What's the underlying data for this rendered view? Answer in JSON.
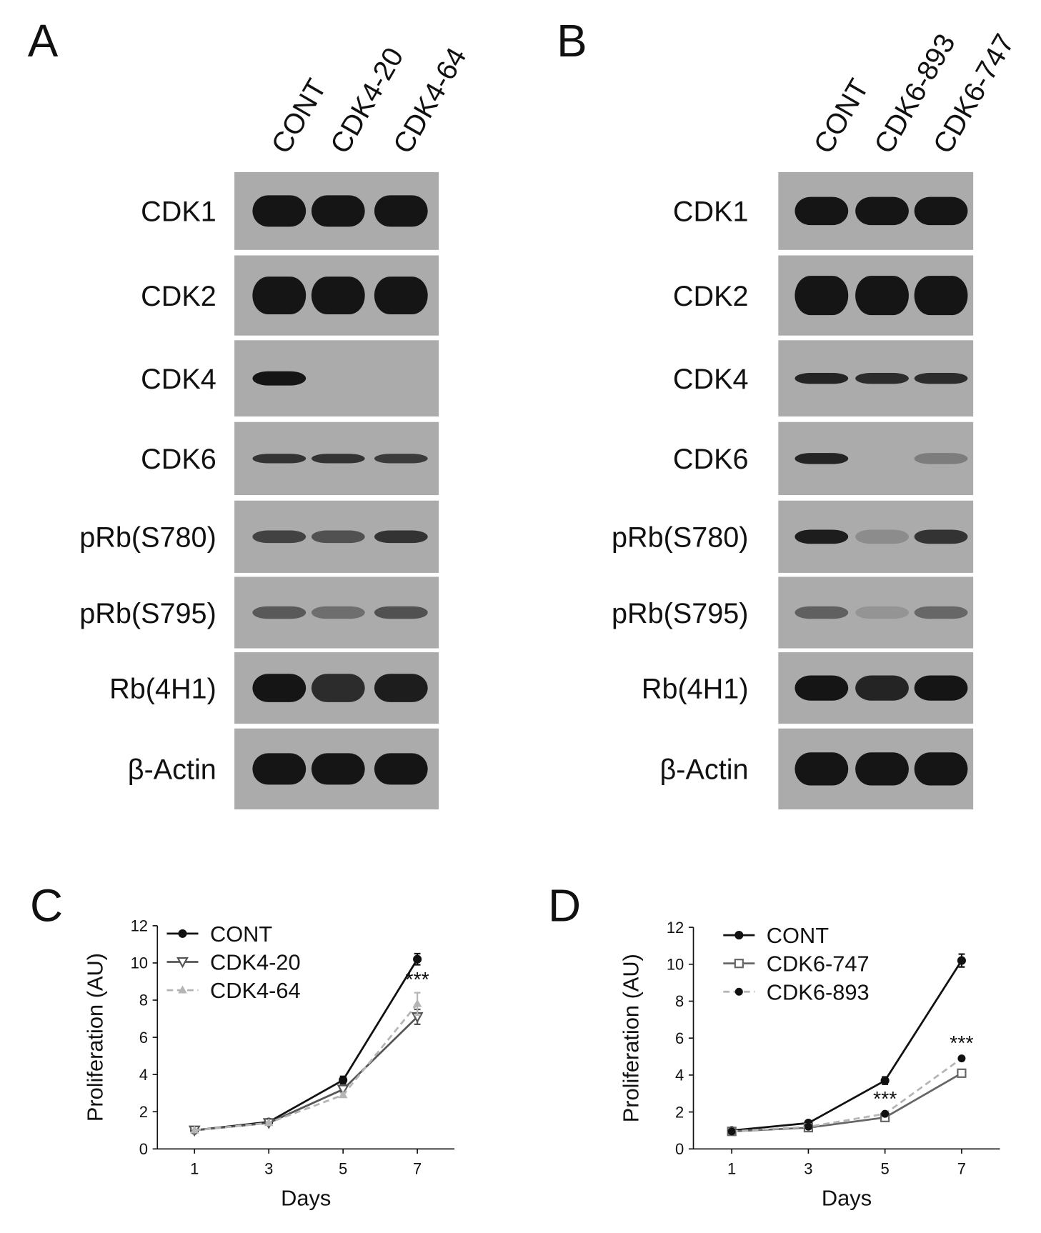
{
  "figure": {
    "blots": [
      {
        "panel_label": "A",
        "lanes": [
          "CONT",
          "CDK4-20",
          "CDK4-64"
        ],
        "rows": [
          "CDK1",
          "CDK2",
          "CDK4",
          "CDK6",
          "pRb(S780)",
          "pRb(S795)",
          "Rb(4H1)",
          "β-Actin"
        ]
      },
      {
        "panel_label": "B",
        "lanes": [
          "CONT",
          "CDK6-893",
          "CDK6-747"
        ],
        "rows": [
          "CDK1",
          "CDK2",
          "CDK4",
          "CDK6",
          "pRb(S780)",
          "pRb(S795)",
          "Rb(4H1)",
          "β-Actin"
        ]
      }
    ]
  },
  "chart_data": [
    {
      "type": "line",
      "panel_label": "C",
      "x_label": "Days",
      "y_label": "Proliferation (AU)",
      "x": [
        1,
        3,
        5,
        7
      ],
      "xlim": [
        0,
        8
      ],
      "xticks": [
        1,
        3,
        5,
        7
      ],
      "ylim": [
        0,
        12
      ],
      "yticks": [
        0,
        2,
        4,
        6,
        8,
        10,
        12
      ],
      "legend": "upper left",
      "series": [
        {
          "name": "CONT",
          "color": "#111111",
          "marker": "circle",
          "dash": false,
          "values": [
            1.0,
            1.45,
            3.7,
            10.2
          ],
          "errors": [
            0.05,
            0.05,
            0.2,
            0.3
          ]
        },
        {
          "name": "CDK4-20",
          "color": "#555555",
          "marker": "triangle-down",
          "dash": false,
          "values": [
            1.0,
            1.4,
            3.2,
            7.1
          ],
          "errors": [
            0.05,
            0.05,
            0.15,
            0.4
          ]
        },
        {
          "name": "CDK4-64",
          "color": "#b5b5b5",
          "marker": "triangle",
          "dash": true,
          "values": [
            1.0,
            1.4,
            2.9,
            7.8
          ],
          "errors": [
            0.05,
            0.05,
            0.1,
            0.6
          ]
        }
      ],
      "annotations": [
        {
          "text": "***",
          "x": 7
        }
      ]
    },
    {
      "type": "line",
      "panel_label": "D",
      "x_label": "Days",
      "y_label": "Proliferation (AU)",
      "x": [
        1,
        3,
        5,
        7
      ],
      "xlim": [
        0,
        8
      ],
      "xticks": [
        1,
        3,
        5,
        7
      ],
      "ylim": [
        0,
        12
      ],
      "yticks": [
        0,
        2,
        4,
        6,
        8,
        10,
        12
      ],
      "legend": "upper left",
      "series": [
        {
          "name": "CONT",
          "color": "#111111",
          "marker": "circle",
          "dash": false,
          "values": [
            1.0,
            1.4,
            3.7,
            10.2
          ],
          "errors": [
            0.05,
            0.05,
            0.2,
            0.35
          ]
        },
        {
          "name": "CDK6-747",
          "color": "#666666",
          "marker": "square",
          "dash": false,
          "values": [
            0.95,
            1.15,
            1.7,
            4.1
          ],
          "errors": [
            0.05,
            0.05,
            0.1,
            0.2
          ]
        },
        {
          "name": "CDK6-893",
          "color": "#b5b5b5",
          "marker": "dot",
          "dash": true,
          "values": [
            0.95,
            1.2,
            1.9,
            4.9
          ],
          "errors": [
            0.05,
            0.05,
            0.1,
            0.1
          ]
        }
      ],
      "annotations": [
        {
          "text": "***",
          "x": 5
        },
        {
          "text": "***",
          "x": 7
        }
      ]
    }
  ]
}
